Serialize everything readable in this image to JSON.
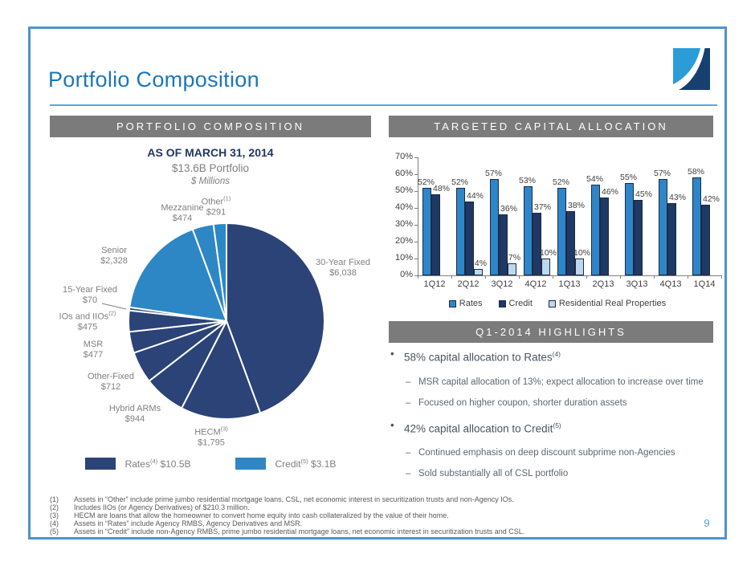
{
  "slide": {
    "title": "Portfolio Composition",
    "page_number": "9"
  },
  "theme": {
    "frame_border": "#4E94CB",
    "title_blue": "#1C76BD",
    "header_bar_gray": "#7B7B7B",
    "navy": "#1F3864",
    "pie_dark_blue": "#2B4377",
    "pie_light_blue": "#2D87C5",
    "bar_rates_blue": "#2E86C8",
    "bar_credit_navy": "#1F3864",
    "bar_rrp_pale_blue": "#BDD7EE",
    "gray_text": "#7F7F7F",
    "footnote_gray": "#595959",
    "page_number_blue": "#5B9BD5"
  },
  "logo": {
    "name": "logo-mark",
    "light_color": "#2B9CD8",
    "dark_color": "#16406F"
  },
  "left_panel": {
    "header": "PORTFOLIO COMPOSITION"
  },
  "right_panel": {
    "header": "TARGETED CAPITAL ALLOCATION"
  },
  "chart_data": [
    {
      "type": "pie",
      "title": "AS OF MARCH 31, 2014",
      "subtitle": "$13.6B Portfolio",
      "units": "$ Millions",
      "total_display": "$13.6B",
      "slices": [
        {
          "label": "30-Year Fixed",
          "sup": "",
          "value": 6038,
          "display": "$6,038",
          "group": "Rates",
          "color": "#2B4377"
        },
        {
          "label": "HECM",
          "sup": "(3)",
          "value": 1795,
          "display": "$1,795",
          "group": "Rates",
          "color": "#2B4377"
        },
        {
          "label": "Hybrid ARMs",
          "sup": "",
          "value": 944,
          "display": "$944",
          "group": "Rates",
          "color": "#2B4377"
        },
        {
          "label": "Other-Fixed",
          "sup": "",
          "value": 712,
          "display": "$712",
          "group": "Rates",
          "color": "#2B4377"
        },
        {
          "label": "MSR",
          "sup": "",
          "value": 477,
          "display": "$477",
          "group": "Rates",
          "color": "#2B4377"
        },
        {
          "label": "IOs and IIOs",
          "sup": "(2)",
          "value": 475,
          "display": "$475",
          "group": "Rates",
          "color": "#2B4377"
        },
        {
          "label": "15-Year Fixed",
          "sup": "",
          "value": 70,
          "display": "$70",
          "group": "Rates",
          "color": "#2B4377"
        },
        {
          "label": "Senior",
          "sup": "",
          "value": 2328,
          "display": "$2,328",
          "group": "Credit",
          "color": "#2D87C5"
        },
        {
          "label": "Mezzanine",
          "sup": "",
          "value": 474,
          "display": "$474",
          "group": "Credit",
          "color": "#2D87C5"
        },
        {
          "label": "Other",
          "sup": "(1)",
          "value": 291,
          "display": "$291",
          "group": "Credit",
          "color": "#2D87C5"
        }
      ],
      "legend": [
        {
          "label": "Rates",
          "sup": "(4)",
          "amount": "$10.5B",
          "color": "#2B4377"
        },
        {
          "label": "Credit",
          "sup": "(5)",
          "amount": "$3.1B",
          "color": "#2D87C5"
        }
      ]
    },
    {
      "type": "bar",
      "title": "TARGETED CAPITAL ALLOCATION",
      "categories": [
        "1Q12",
        "2Q12",
        "3Q12",
        "4Q12",
        "1Q13",
        "2Q13",
        "3Q13",
        "4Q13",
        "1Q14"
      ],
      "series": [
        {
          "name": "Rates",
          "color": "#2E86C8",
          "values": [
            52,
            52,
            57,
            53,
            52,
            54,
            55,
            57,
            58
          ]
        },
        {
          "name": "Credit",
          "color": "#1F3864",
          "values": [
            48,
            44,
            36,
            37,
            38,
            46,
            45,
            43,
            42
          ]
        },
        {
          "name": "Residential Real Properties",
          "color": "#BDD7EE",
          "values": [
            null,
            4,
            7,
            10,
            10,
            null,
            null,
            null,
            null
          ]
        }
      ],
      "ylabel": "",
      "xlabel": "",
      "ylim": [
        0,
        70
      ],
      "ytick_step": 10,
      "value_suffix": "%",
      "grid": false,
      "legend_position": "bottom"
    }
  ],
  "highlights": {
    "header": "Q1-2014 HIGHLIGHTS",
    "items": [
      {
        "text": "58% capital allocation to Rates",
        "sup": "(4)",
        "subs": [
          "MSR capital allocation of 13%; expect allocation to increase over time",
          "Focused on higher coupon, shorter duration assets"
        ]
      },
      {
        "text": "42% capital allocation to Credit",
        "sup": "(5)",
        "subs": [
          "Continued emphasis on deep discount subprime non-Agencies",
          "Sold substantially all of CSL portfolio"
        ]
      }
    ]
  },
  "footnotes": [
    {
      "num": "(1)",
      "text": "Assets in “Other” include prime jumbo residential mortgage loans, CSL, net economic interest in securitization trusts and non-Agency IOs."
    },
    {
      "num": "(2)",
      "text": "Includes IIOs (or Agency Derivatives) of $210.3 million."
    },
    {
      "num": "(3)",
      "text": "HECM are loans that allow the homeowner to convert home equity into cash collateralized by the value of their home."
    },
    {
      "num": "(4)",
      "text": "Assets in “Rates” include Agency RMBS, Agency Derivatives and MSR."
    },
    {
      "num": "(5)",
      "text": "Assets in “Credit” include non-Agency RMBS, prime jumbo residential mortgage loans, net economic interest in securitization trusts and CSL."
    }
  ]
}
